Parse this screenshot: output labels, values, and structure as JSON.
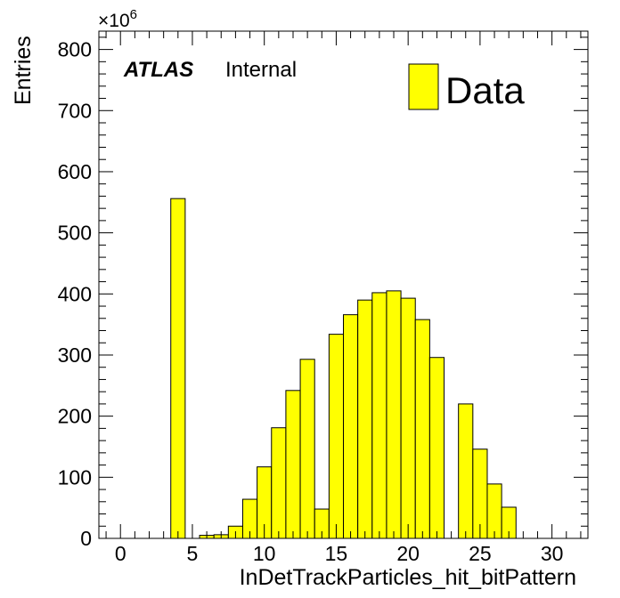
{
  "chart_data": {
    "type": "bar",
    "xlabel": "InDetTrackParticles_hit_bitPattern",
    "ylabel": "Entries",
    "y_multiplier": "×10",
    "y_exponent": "6",
    "xlim": [
      -1.5,
      32.5
    ],
    "ylim": [
      0,
      830
    ],
    "bin_width": 1,
    "x_ticks": [
      0,
      5,
      10,
      15,
      20,
      25,
      30
    ],
    "y_ticks": [
      0,
      100,
      200,
      300,
      400,
      500,
      600,
      700,
      800
    ],
    "bins": [
      {
        "x": 4,
        "value": 556
      },
      {
        "x": 6,
        "value": 5
      },
      {
        "x": 7,
        "value": 6
      },
      {
        "x": 8,
        "value": 20
      },
      {
        "x": 9,
        "value": 64
      },
      {
        "x": 10,
        "value": 117
      },
      {
        "x": 11,
        "value": 181
      },
      {
        "x": 12,
        "value": 242
      },
      {
        "x": 13,
        "value": 293
      },
      {
        "x": 14,
        "value": 48
      },
      {
        "x": 15,
        "value": 334
      },
      {
        "x": 16,
        "value": 366
      },
      {
        "x": 17,
        "value": 390
      },
      {
        "x": 18,
        "value": 402
      },
      {
        "x": 19,
        "value": 405
      },
      {
        "x": 20,
        "value": 393
      },
      {
        "x": 21,
        "value": 358
      },
      {
        "x": 22,
        "value": 296
      },
      {
        "x": 24,
        "value": 220
      },
      {
        "x": 25,
        "value": 146
      },
      {
        "x": 26,
        "value": 89
      },
      {
        "x": 27,
        "value": 51
      }
    ],
    "fill_color": "#ffff00",
    "line_color": "#000000",
    "series": [
      {
        "name": "Data"
      }
    ],
    "legend_position": "top-right",
    "grid": false
  },
  "labels": {
    "atlas": "ATLAS",
    "internal": "Internal",
    "legend": "Data"
  }
}
